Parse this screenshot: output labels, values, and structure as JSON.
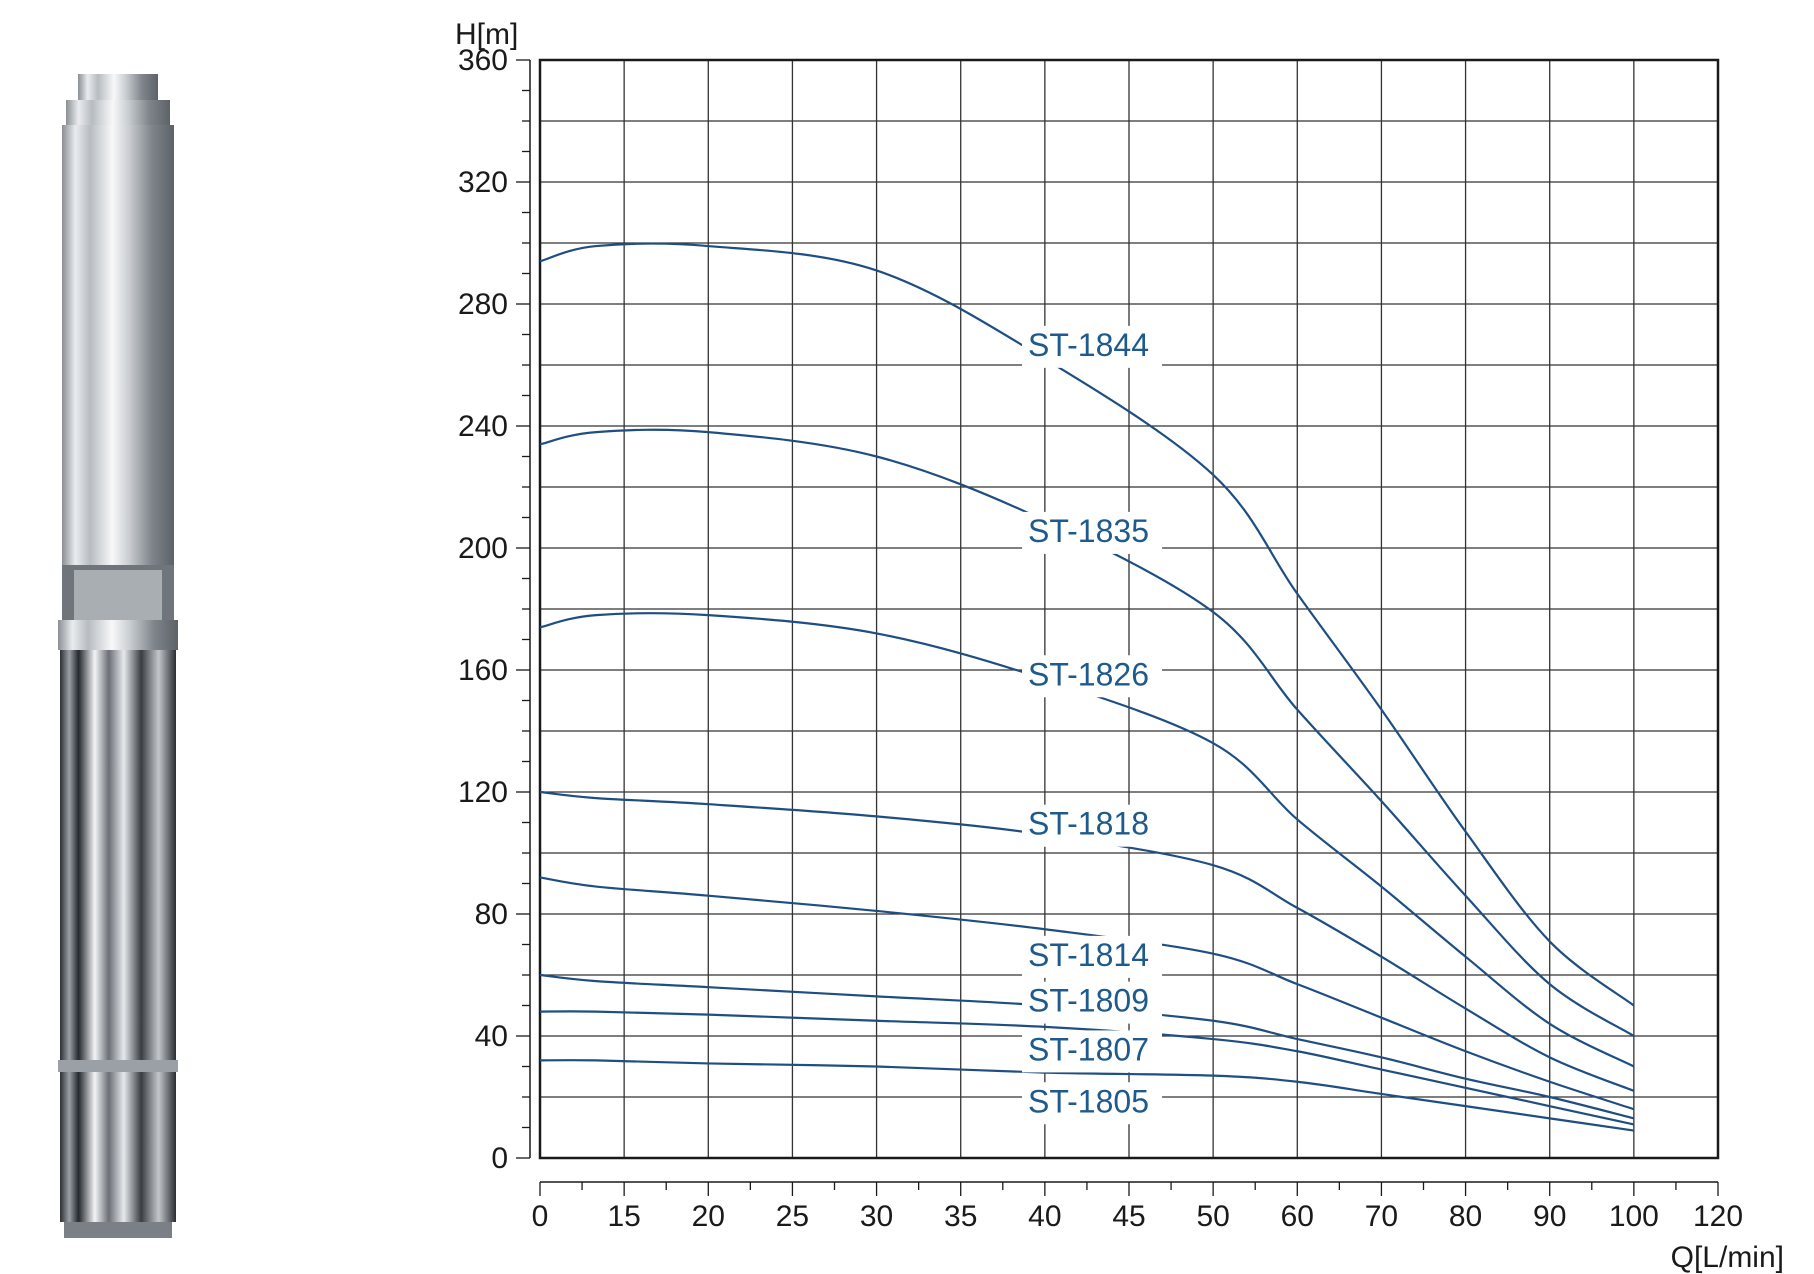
{
  "chart_data": {
    "type": "line",
    "xlabel": "Q[L/min]",
    "ylabel": "H[m]",
    "xlim": [
      0,
      120
    ],
    "ylim": [
      0,
      360
    ],
    "x_ticks": [
      0,
      15,
      20,
      25,
      30,
      35,
      40,
      45,
      50,
      60,
      70,
      80,
      90,
      100,
      120
    ],
    "y_ticks": [
      0,
      40,
      80,
      120,
      160,
      200,
      240,
      280,
      320,
      360
    ],
    "grid": true,
    "line_color": "#1f4e82",
    "label_color": "#1f5a8c",
    "series": [
      {
        "name": "ST-1844",
        "x": [
          0,
          10,
          20,
          30,
          40,
          50,
          60,
          70,
          80,
          90,
          100
        ],
        "y": [
          294,
          299,
          299,
          291,
          262,
          224,
          185,
          147,
          107,
          71,
          50
        ]
      },
      {
        "name": "ST-1835",
        "x": [
          0,
          10,
          20,
          30,
          40,
          50,
          60,
          70,
          80,
          90,
          100
        ],
        "y": [
          234,
          238,
          238,
          230,
          209,
          179,
          147,
          117,
          86,
          57,
          40
        ]
      },
      {
        "name": "ST-1826",
        "x": [
          0,
          10,
          20,
          30,
          40,
          50,
          60,
          70,
          80,
          90,
          100
        ],
        "y": [
          174,
          178,
          178,
          172,
          157,
          136,
          111,
          89,
          66,
          44,
          30
        ]
      },
      {
        "name": "ST-1818",
        "x": [
          0,
          10,
          20,
          30,
          40,
          50,
          60,
          70,
          80,
          90,
          100
        ],
        "y": [
          120,
          118,
          116,
          112,
          106,
          96,
          82,
          66,
          49,
          33,
          22
        ]
      },
      {
        "name": "ST-1814",
        "x": [
          0,
          10,
          20,
          30,
          40,
          50,
          60,
          70,
          80,
          90,
          100
        ],
        "y": [
          92,
          89,
          86,
          81,
          75,
          67,
          57,
          46,
          35,
          25,
          16
        ]
      },
      {
        "name": "ST-1809",
        "x": [
          0,
          10,
          20,
          30,
          40,
          50,
          60,
          70,
          80,
          90,
          100
        ],
        "y": [
          60,
          58,
          56,
          53,
          50,
          45,
          39,
          33,
          26,
          20,
          13
        ]
      },
      {
        "name": "ST-1807",
        "x": [
          0,
          10,
          20,
          30,
          40,
          50,
          60,
          70,
          80,
          90,
          100
        ],
        "y": [
          48,
          48,
          47,
          45,
          43,
          39,
          35,
          29,
          23,
          17,
          11
        ]
      },
      {
        "name": "ST-1805",
        "x": [
          0,
          10,
          20,
          30,
          40,
          50,
          60,
          70,
          80,
          90,
          100
        ],
        "y": [
          32,
          32,
          31,
          30,
          28,
          27,
          25,
          21,
          17,
          13,
          9
        ]
      }
    ],
    "curve_labels": [
      {
        "text": "ST-1844",
        "x": 39,
        "y": 263
      },
      {
        "text": "ST-1835",
        "x": 39,
        "y": 202
      },
      {
        "text": "ST-1826",
        "x": 39,
        "y": 155
      },
      {
        "text": "ST-1818",
        "x": 39,
        "y": 106
      },
      {
        "text": "ST-1814",
        "x": 39,
        "y": 63
      },
      {
        "text": "ST-1809",
        "x": 39,
        "y": 48
      },
      {
        "text": "ST-1807",
        "x": 39,
        "y": 32
      },
      {
        "text": "ST-1805",
        "x": 39,
        "y": 15
      }
    ]
  }
}
